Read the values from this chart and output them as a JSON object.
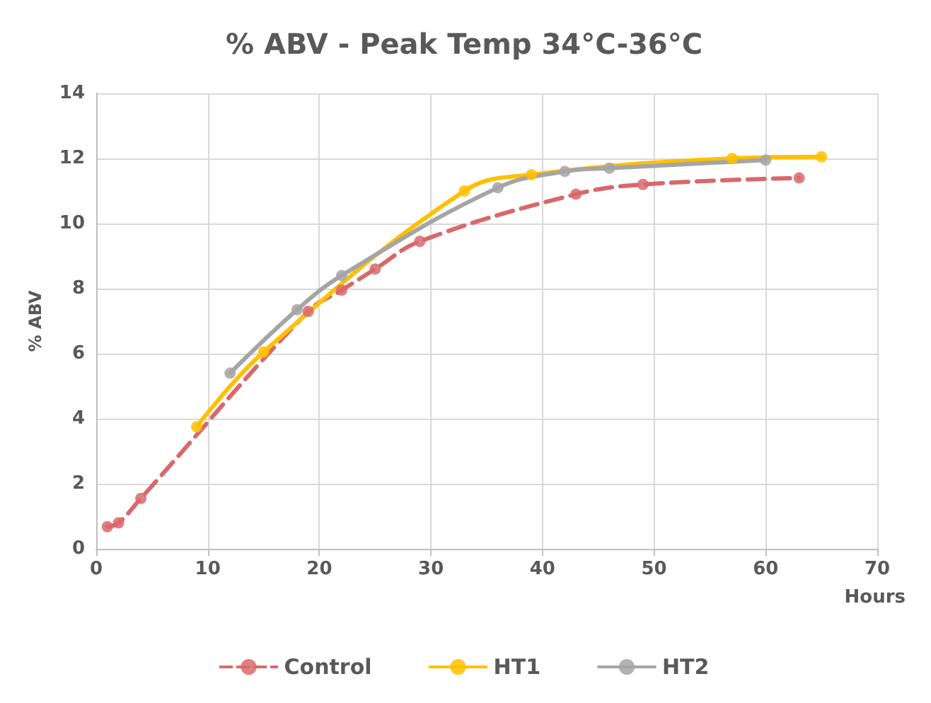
{
  "chart_data": {
    "type": "line",
    "title": "% ABV - Peak Temp 34°C-36°C",
    "xlabel": "Hours",
    "ylabel": "% ABV",
    "xlim": [
      0,
      70
    ],
    "xticks": [
      0,
      10,
      20,
      30,
      40,
      50,
      60,
      70
    ],
    "ylim": [
      0,
      14
    ],
    "yticks": [
      0,
      2,
      4,
      6,
      8,
      10,
      12,
      14
    ],
    "grid": true,
    "legend": "bottom",
    "marker": "circle",
    "series": [
      {
        "name": "Control",
        "color": "#d9686b",
        "line_style": "dashed",
        "x": [
          1,
          2,
          4,
          19,
          22,
          25,
          29,
          43,
          49,
          63
        ],
        "values": [
          0.68,
          0.8,
          1.55,
          7.3,
          7.95,
          8.6,
          9.45,
          10.9,
          11.2,
          11.4
        ]
      },
      {
        "name": "HT1",
        "color": "#ffc000",
        "line_style": "solid",
        "x": [
          9,
          15,
          33,
          39,
          57,
          65
        ],
        "values": [
          3.75,
          6.05,
          11.0,
          11.5,
          12.0,
          12.05
        ]
      },
      {
        "name": "HT2",
        "color": "#a5a5a5",
        "line_style": "solid",
        "x": [
          12,
          18,
          22,
          36,
          42,
          46,
          60
        ],
        "values": [
          5.4,
          7.35,
          8.4,
          11.1,
          11.6,
          11.7,
          11.95
        ]
      }
    ]
  }
}
